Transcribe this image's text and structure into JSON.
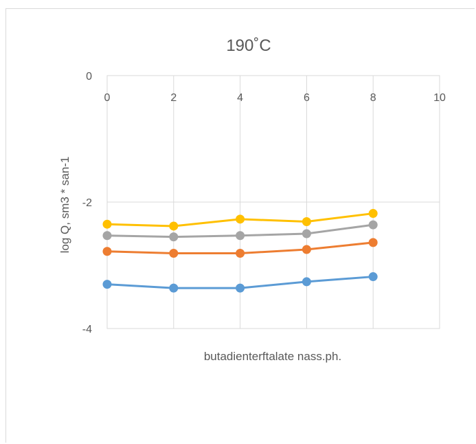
{
  "chart_data": {
    "type": "line",
    "title": "190˚C",
    "xlabel": "butadienterftalate nass.ph.",
    "ylabel": "log Q, sm3 * san-1",
    "xlim": [
      0,
      10
    ],
    "ylim": [
      -4,
      0
    ],
    "x_ticks": [
      "0",
      "2",
      "4",
      "6",
      "8",
      "10"
    ],
    "y_ticks": [
      "0",
      "-2",
      "-4"
    ],
    "x_axis_position": "top",
    "grid": true,
    "legend": "none",
    "x": [
      0,
      2,
      4,
      6,
      8
    ],
    "series": [
      {
        "color": "#ffc000",
        "values": [
          -2.35,
          -2.38,
          -2.27,
          -2.31,
          -2.18
        ]
      },
      {
        "color": "#a5a5a5",
        "values": [
          -2.53,
          -2.55,
          -2.53,
          -2.5,
          -2.36
        ]
      },
      {
        "color": "#ed7d31",
        "values": [
          -2.78,
          -2.81,
          -2.81,
          -2.75,
          -2.64
        ]
      },
      {
        "color": "#5b9bd5",
        "values": [
          -3.3,
          -3.36,
          -3.36,
          -3.26,
          -3.18
        ]
      }
    ]
  }
}
